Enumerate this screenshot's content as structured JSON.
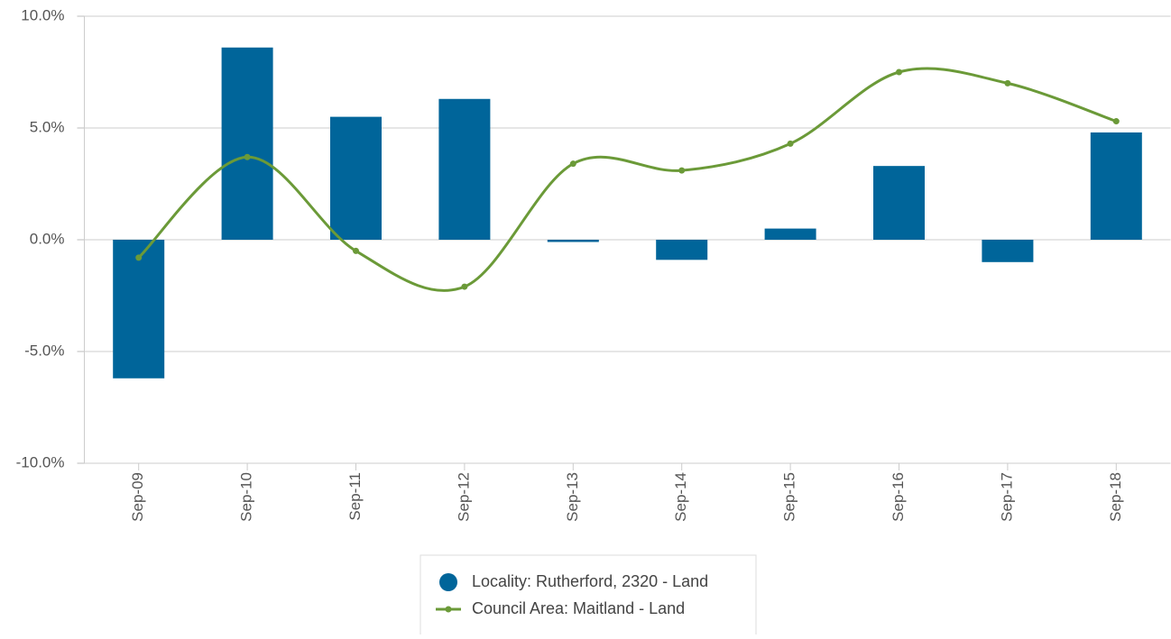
{
  "chart_data": {
    "type": "bar_line",
    "categories": [
      "Sep-09",
      "Sep-10",
      "Sep-11",
      "Sep-12",
      "Sep-13",
      "Sep-14",
      "Sep-15",
      "Sep-16",
      "Sep-17",
      "Sep-18"
    ],
    "series": [
      {
        "name": "Locality: Rutherford, 2320 - Land",
        "type": "bar",
        "color": "#00659a",
        "values": [
          -6.2,
          8.6,
          5.5,
          6.3,
          -0.1,
          -0.9,
          0.5,
          3.3,
          -1.0,
          4.8
        ]
      },
      {
        "name": "Council Area: Maitland - Land",
        "type": "line",
        "smooth": true,
        "color": "#6b9a38",
        "values": [
          -0.8,
          3.7,
          -0.5,
          -2.1,
          3.4,
          3.1,
          4.3,
          7.5,
          7.0,
          5.3
        ]
      }
    ],
    "ylim": [
      -10,
      10
    ],
    "yticks": [
      {
        "value": -10,
        "label": "-10.0%"
      },
      {
        "value": -5,
        "label": "-5.0%"
      },
      {
        "value": 0,
        "label": "0.0%"
      },
      {
        "value": 5,
        "label": "5.0%"
      },
      {
        "value": 10,
        "label": "10.0%"
      }
    ],
    "grid": true,
    "legend": "bottom"
  }
}
